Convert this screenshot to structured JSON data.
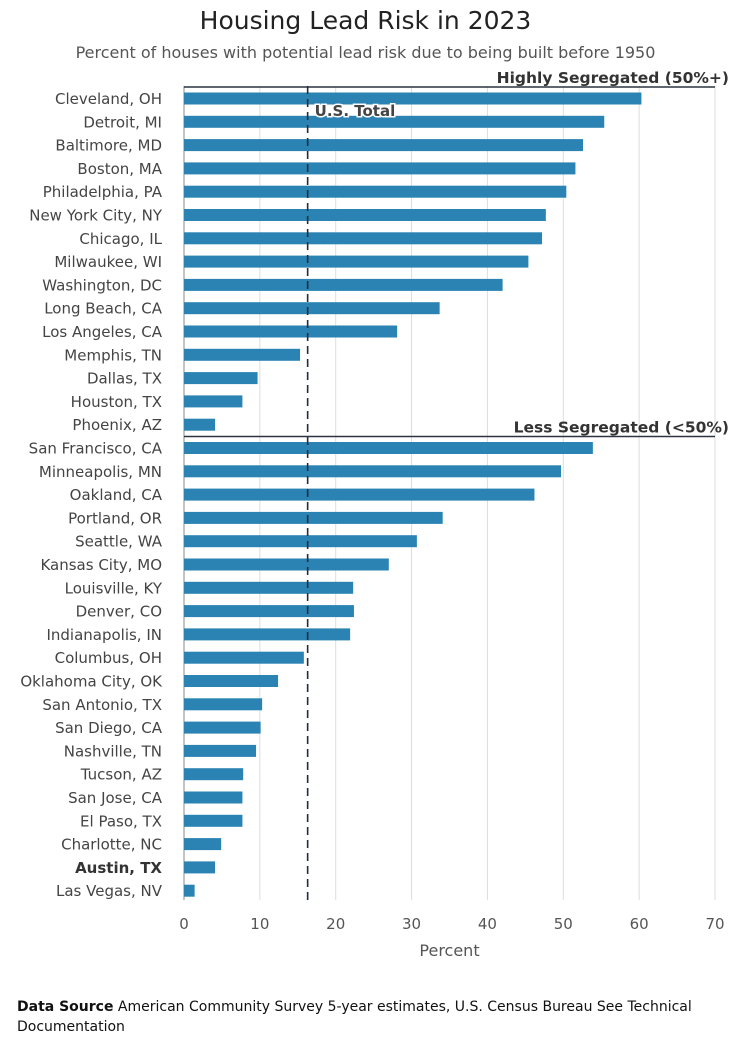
{
  "title": "Housing Lead Risk in 2023",
  "subtitle": "Percent of houses with potential lead risk due to being built before 1950",
  "footer": {
    "source_label": "Data Source",
    "source_text": "American Community Survey 5-year estimates, U.S. Census Bureau See Technical Documentation"
  },
  "colors": {
    "bar": "#2a83b2",
    "reference": "#1f2d3d",
    "grid": "#dddddd"
  },
  "chart_data": {
    "type": "bar",
    "orientation": "horizontal",
    "title": "Housing Lead Risk in 2023",
    "subtitle": "Percent of houses with potential lead risk due to being built before 1950",
    "xlabel": "Percent",
    "ylabel": "",
    "xlim": [
      0,
      70
    ],
    "x_ticks": [
      "0",
      "10",
      "20",
      "30",
      "40",
      "50",
      "60",
      "70"
    ],
    "grid": "vertical",
    "reference_line": {
      "label": "U.S. Total",
      "value": 16.3
    },
    "groups": [
      {
        "label": "Highly Segregated (50%+)",
        "start_index": 0
      },
      {
        "label": "Less Segregated (<50%)",
        "start_index": 15
      }
    ],
    "highlighted": [
      "Austin, TX"
    ],
    "categories": [
      "Cleveland, OH",
      "Detroit, MI",
      "Baltimore, MD",
      "Boston, MA",
      "Philadelphia, PA",
      "New York City, NY",
      "Chicago, IL",
      "Milwaukee, WI",
      "Washington, DC",
      "Long Beach, CA",
      "Los Angeles, CA",
      "Memphis, TN",
      "Dallas, TX",
      "Houston, TX",
      "Phoenix, AZ",
      "San Francisco, CA",
      "Minneapolis, MN",
      "Oakland, CA",
      "Portland, OR",
      "Seattle, WA",
      "Kansas City, MO",
      "Louisville, KY",
      "Denver, CO",
      "Indianapolis, IN",
      "Columbus, OH",
      "Oklahoma City, OK",
      "San Antonio, TX",
      "San Diego, CA",
      "Nashville, TN",
      "Tucson, AZ",
      "San Jose, CA",
      "El Paso, TX",
      "Charlotte, NC",
      "Austin, TX",
      "Las Vegas, NV"
    ],
    "values": [
      60.3,
      55.4,
      52.6,
      51.6,
      50.4,
      47.7,
      47.2,
      45.4,
      42.0,
      33.7,
      28.1,
      15.3,
      9.7,
      7.7,
      4.1,
      53.9,
      49.7,
      46.2,
      34.1,
      30.7,
      27.0,
      22.3,
      22.4,
      21.9,
      15.8,
      12.4,
      10.3,
      10.1,
      9.5,
      7.8,
      7.7,
      7.7,
      4.9,
      4.1,
      1.4
    ]
  }
}
